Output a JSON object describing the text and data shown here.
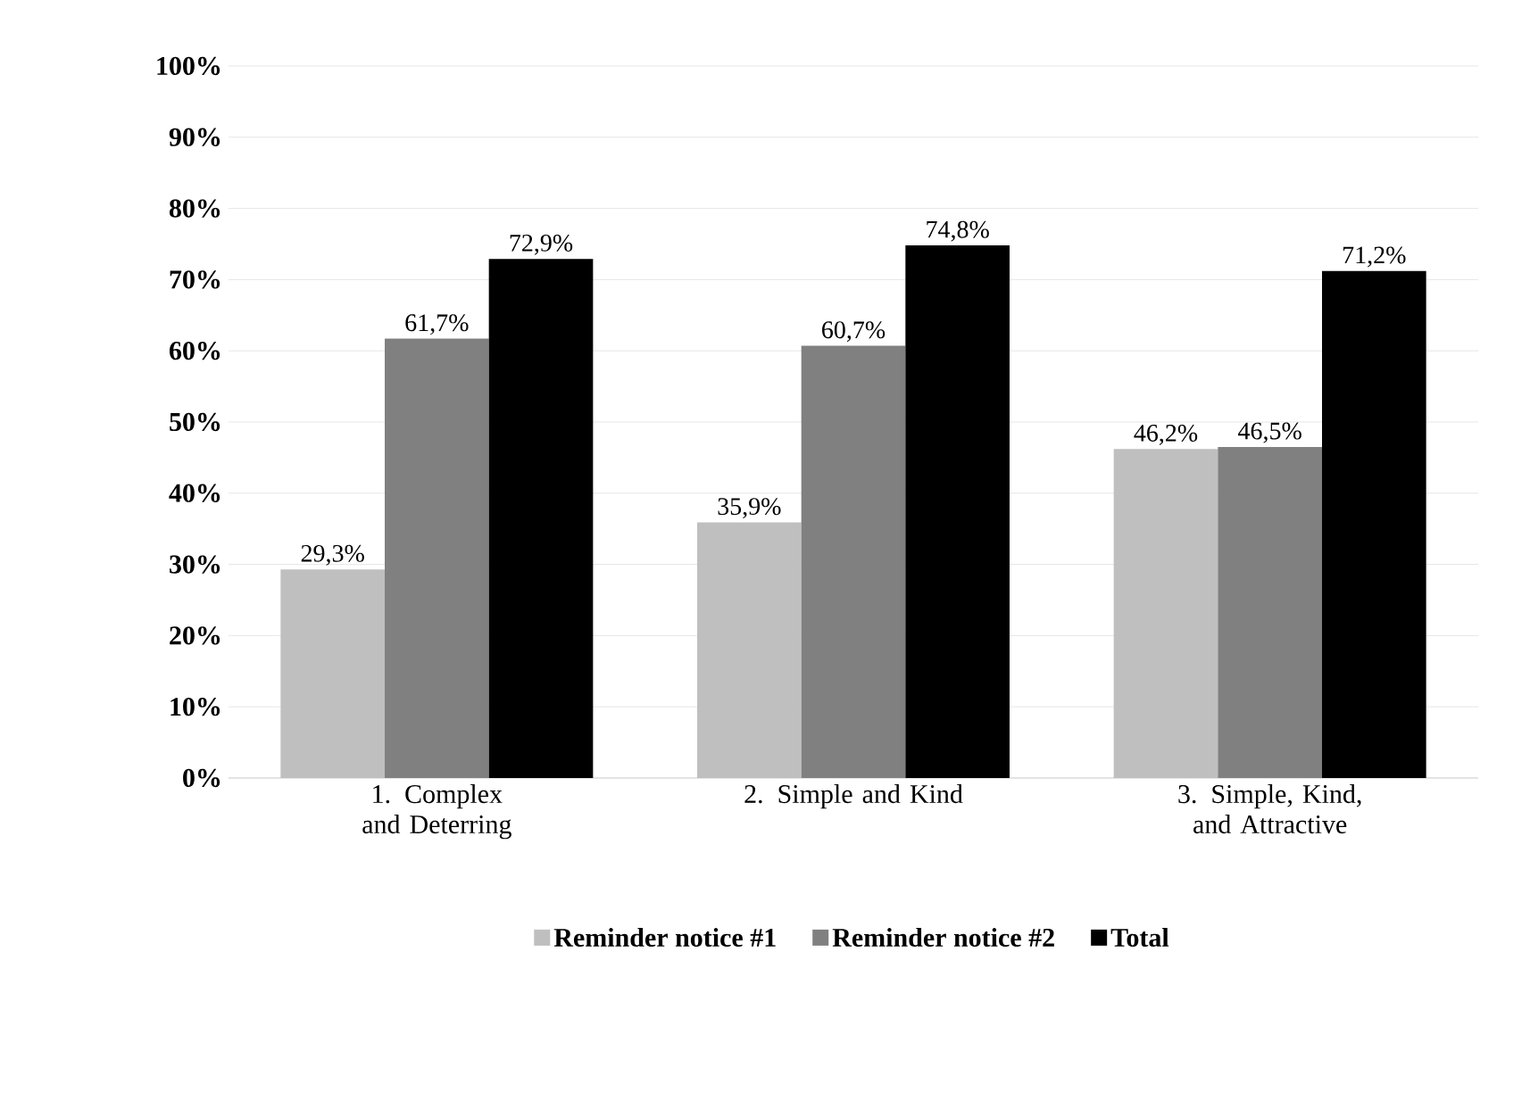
{
  "chart_data": {
    "type": "bar",
    "categories": [
      "1. Complex and Deterring",
      "2. Simple and Kind",
      "3. Simple, Kind, and Attractive"
    ],
    "series": [
      {
        "name": "Reminder notice #1",
        "color": "#bfbfbf",
        "values": [
          29.3,
          35.9,
          46.2
        ],
        "value_labels": [
          "29,3%",
          "35,9%",
          "46,2%"
        ]
      },
      {
        "name": "Reminder notice #2",
        "color": "#808080",
        "values": [
          61.7,
          60.7,
          46.5
        ],
        "value_labels": [
          "61,7%",
          "60,7%",
          "46,5%"
        ]
      },
      {
        "name": "Total",
        "color": "#000000",
        "values": [
          72.9,
          74.8,
          71.2
        ],
        "value_labels": [
          "72,9%",
          "74,8%",
          "71,2%"
        ]
      }
    ],
    "ylim": [
      0,
      100
    ],
    "yticks": [
      {
        "value": 0,
        "label": "0%"
      },
      {
        "value": 10,
        "label": "10%"
      },
      {
        "value": 20,
        "label": "20%"
      },
      {
        "value": 30,
        "label": "30%"
      },
      {
        "value": 40,
        "label": "40%"
      },
      {
        "value": 50,
        "label": "50%"
      },
      {
        "value": 60,
        "label": "60%"
      },
      {
        "value": 70,
        "label": "70%"
      },
      {
        "value": 80,
        "label": "80%"
      },
      {
        "value": 90,
        "label": "90%"
      },
      {
        "value": 100,
        "label": "100%"
      }
    ],
    "grid": "y",
    "legend": "bottom"
  }
}
